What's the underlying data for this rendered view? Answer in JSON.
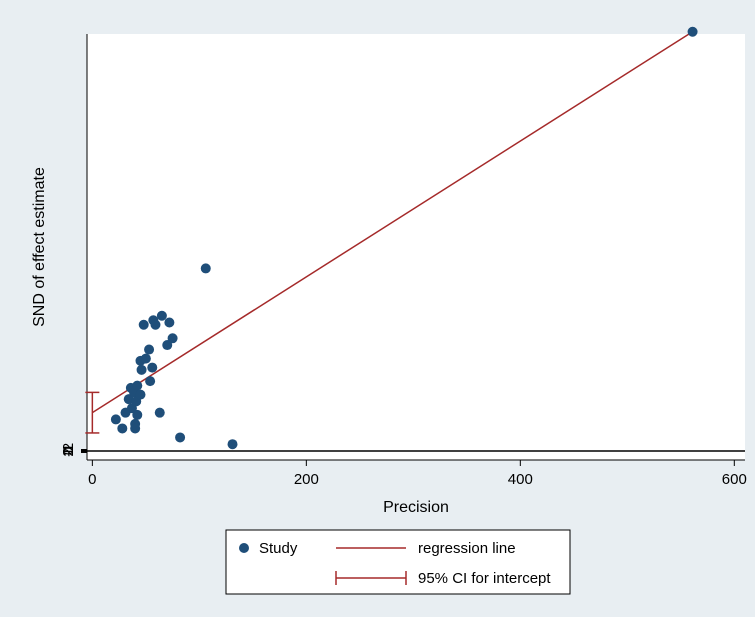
{
  "chart_data": {
    "type": "scatter",
    "title": "",
    "xlabel": "Precision",
    "ylabel": "SND of effect estimate",
    "xlim": [
      -5,
      610
    ],
    "ylim": [
      -4,
      185
    ],
    "x_ticks": [
      {
        "value": 0,
        "label": "0"
      },
      {
        "value": 200,
        "label": "200"
      },
      {
        "value": 400,
        "label": "400"
      },
      {
        "value": 600,
        "label": "600"
      }
    ],
    "y_ticks": [
      {
        "value": -2,
        "label": "-2"
      },
      {
        "value": -1,
        "label": "-1"
      },
      {
        "value": 0,
        "label": "0"
      },
      {
        "value": 1,
        "label": "1"
      },
      {
        "value": 2,
        "label": "2"
      }
    ],
    "reference_line_y": 0,
    "series": [
      {
        "name": "Study",
        "kind": "scatter",
        "color": "#1f4e79",
        "points": [
          [
            22,
            14
          ],
          [
            28,
            10
          ],
          [
            31,
            17
          ],
          [
            34,
            23
          ],
          [
            36,
            28
          ],
          [
            37,
            19
          ],
          [
            39,
            26
          ],
          [
            40,
            12
          ],
          [
            40,
            10
          ],
          [
            41,
            22
          ],
          [
            42,
            16
          ],
          [
            42,
            29
          ],
          [
            45,
            25
          ],
          [
            45,
            40
          ],
          [
            46,
            36
          ],
          [
            48,
            56
          ],
          [
            50,
            41
          ],
          [
            53,
            45
          ],
          [
            54,
            31
          ],
          [
            56,
            37
          ],
          [
            57,
            58
          ],
          [
            59,
            56
          ],
          [
            63,
            17
          ],
          [
            65,
            60
          ],
          [
            70,
            47
          ],
          [
            72,
            57
          ],
          [
            75,
            50
          ],
          [
            82,
            6
          ],
          [
            106,
            81
          ],
          [
            131,
            3
          ],
          [
            561,
            186
          ]
        ]
      },
      {
        "name": "regression line",
        "kind": "line",
        "color": "#a52a2a",
        "x": [
          0,
          561
        ],
        "y": [
          17,
          186
        ]
      },
      {
        "name": "95% CI for intercept",
        "kind": "interval",
        "color": "#a52a2a",
        "x": 0,
        "low": 8,
        "high": 26
      }
    ],
    "grid": false,
    "legend_position": "bottom",
    "legend": [
      {
        "symbol": "dot",
        "label": "Study",
        "color": "#1f4e79"
      },
      {
        "symbol": "line",
        "label": "regression line",
        "color": "#a52a2a"
      },
      {
        "symbol": "capped-line",
        "label": "95% CI for intercept",
        "color": "#a52a2a"
      }
    ],
    "colors": {
      "outer_background": "#e8eef2",
      "plot_background": "#ffffff"
    }
  }
}
